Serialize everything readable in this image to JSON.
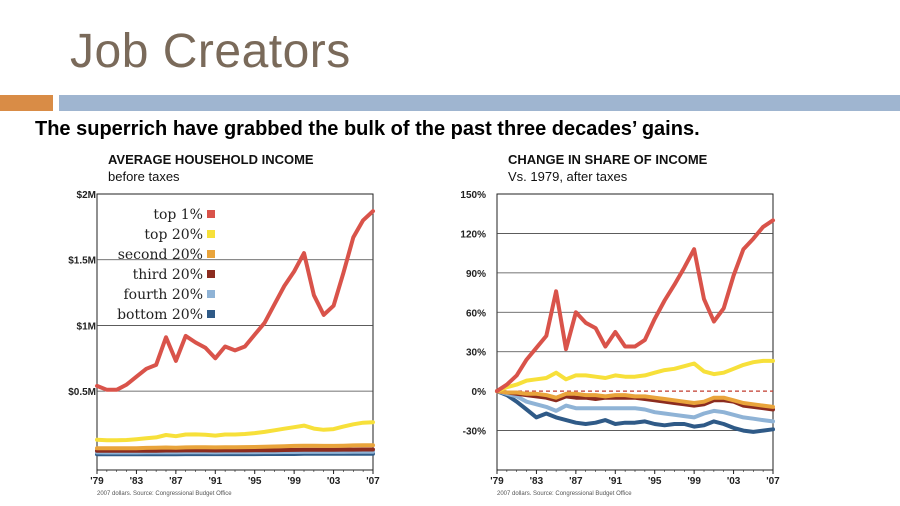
{
  "slide": {
    "title": "Job Creators",
    "subtitle": "The superrich have grabbed the bulk of the past three decades’ gains."
  },
  "colors": {
    "title": "#7a6a5a",
    "accent_orange": "#d98c46",
    "accent_blue": "#9fb5d0"
  },
  "chart_data": [
    {
      "type": "line",
      "title": "AVERAGE HOUSEHOLD INCOME",
      "subtitle": "before taxes",
      "source": "2007 dollars. Source: Congressional Budget Office",
      "x": [
        1979,
        1980,
        1981,
        1982,
        1983,
        1984,
        1985,
        1986,
        1987,
        1988,
        1989,
        1990,
        1991,
        1992,
        1993,
        1994,
        1995,
        1996,
        1997,
        1998,
        1999,
        2000,
        2001,
        2002,
        2003,
        2004,
        2005,
        2006,
        2007
      ],
      "x_tick_values": [
        1979,
        1983,
        1987,
        1991,
        1995,
        1999,
        2003,
        2007
      ],
      "x_tick_labels": [
        "'79",
        "'83",
        "'87",
        "'91",
        "'95",
        "'99",
        "'03",
        "'07"
      ],
      "y_tick_values": [
        0.5,
        1,
        1.5,
        2
      ],
      "y_tick_labels": [
        "$0.5M",
        "$1M",
        "$1.5M",
        "$2M"
      ],
      "ylim": [
        -0.1,
        2.0
      ],
      "legend_position": "top-left",
      "series": [
        {
          "name": "top 1%",
          "color": "#d9534a",
          "values": [
            0.54,
            0.51,
            0.51,
            0.55,
            0.61,
            0.67,
            0.7,
            0.91,
            0.73,
            0.92,
            0.87,
            0.83,
            0.75,
            0.84,
            0.81,
            0.84,
            0.93,
            1.02,
            1.16,
            1.3,
            1.41,
            1.55,
            1.23,
            1.08,
            1.15,
            1.4,
            1.67,
            1.8,
            1.87
          ]
        },
        {
          "name": "top 20%",
          "color": "#f7e03a",
          "values": [
            0.13,
            0.126,
            0.126,
            0.128,
            0.134,
            0.142,
            0.148,
            0.166,
            0.157,
            0.17,
            0.171,
            0.168,
            0.162,
            0.17,
            0.17,
            0.174,
            0.181,
            0.19,
            0.202,
            0.214,
            0.226,
            0.238,
            0.215,
            0.206,
            0.211,
            0.23,
            0.248,
            0.26,
            0.264
          ]
        },
        {
          "name": "second 20%",
          "color": "#e9a43b",
          "values": [
            0.066,
            0.065,
            0.065,
            0.065,
            0.066,
            0.068,
            0.069,
            0.071,
            0.07,
            0.072,
            0.073,
            0.073,
            0.072,
            0.073,
            0.073,
            0.074,
            0.075,
            0.077,
            0.079,
            0.081,
            0.083,
            0.085,
            0.084,
            0.083,
            0.083,
            0.085,
            0.087,
            0.088,
            0.089
          ]
        },
        {
          "name": "third 20%",
          "color": "#8c2c1f",
          "values": [
            0.047,
            0.046,
            0.046,
            0.046,
            0.046,
            0.047,
            0.047,
            0.048,
            0.048,
            0.049,
            0.049,
            0.049,
            0.048,
            0.049,
            0.049,
            0.049,
            0.05,
            0.05,
            0.051,
            0.052,
            0.053,
            0.054,
            0.054,
            0.054,
            0.054,
            0.055,
            0.055,
            0.056,
            0.056
          ]
        },
        {
          "name": "fourth 20%",
          "color": "#8fb3d6",
          "values": [
            0.034,
            0.033,
            0.033,
            0.033,
            0.033,
            0.034,
            0.034,
            0.034,
            0.034,
            0.035,
            0.035,
            0.035,
            0.034,
            0.035,
            0.035,
            0.035,
            0.035,
            0.036,
            0.036,
            0.037,
            0.037,
            0.038,
            0.038,
            0.038,
            0.038,
            0.038,
            0.039,
            0.039,
            0.039
          ]
        },
        {
          "name": "bottom 20%",
          "color": "#2f5a87",
          "values": [
            0.02,
            0.02,
            0.02,
            0.02,
            0.02,
            0.02,
            0.02,
            0.02,
            0.02,
            0.021,
            0.021,
            0.021,
            0.021,
            0.021,
            0.021,
            0.021,
            0.021,
            0.022,
            0.022,
            0.022,
            0.022,
            0.023,
            0.023,
            0.023,
            0.023,
            0.023,
            0.023,
            0.023,
            0.023
          ]
        }
      ]
    },
    {
      "type": "line",
      "title": "CHANGE IN SHARE OF INCOME",
      "subtitle": "Vs. 1979, after taxes",
      "source": "2007 dollars. Source: Congressional Budget Office",
      "x": [
        1979,
        1980,
        1981,
        1982,
        1983,
        1984,
        1985,
        1986,
        1987,
        1988,
        1989,
        1990,
        1991,
        1992,
        1993,
        1994,
        1995,
        1996,
        1997,
        1998,
        1999,
        2000,
        2001,
        2002,
        2003,
        2004,
        2005,
        2006,
        2007
      ],
      "x_tick_values": [
        1979,
        1983,
        1987,
        1991,
        1995,
        1999,
        2003,
        2007
      ],
      "x_tick_labels": [
        "'79",
        "'83",
        "'87",
        "'91",
        "'95",
        "'99",
        "'03",
        "'07"
      ],
      "y_tick_values": [
        -30,
        0,
        30,
        60,
        90,
        120,
        150
      ],
      "y_tick_labels": [
        "-30%",
        "0%",
        "30%",
        "60%",
        "90%",
        "120%",
        "150%"
      ],
      "ylim": [
        -60,
        150
      ],
      "baseline": 0,
      "series": [
        {
          "name": "top 1%",
          "color": "#d9534a",
          "values": [
            0,
            5,
            12,
            24,
            33,
            42,
            76,
            32,
            60,
            52,
            48,
            34,
            45,
            34,
            34,
            39,
            55,
            69,
            81,
            94,
            108,
            70,
            53,
            63,
            88,
            108,
            116,
            125,
            130
          ]
        },
        {
          "name": "top 20%",
          "color": "#f7e03a",
          "values": [
            0,
            3,
            5,
            8,
            9,
            10,
            14,
            9,
            12,
            12,
            11,
            10,
            12,
            11,
            11,
            12,
            14,
            16,
            17,
            19,
            21,
            15,
            13,
            14,
            17,
            20,
            22,
            23,
            23
          ]
        },
        {
          "name": "second 20%",
          "color": "#e9a43b",
          "values": [
            0,
            -1,
            -1,
            -2,
            -2,
            -3,
            -5,
            -2,
            -2,
            -3,
            -3,
            -4,
            -3,
            -3,
            -4,
            -4,
            -5,
            -6,
            -7,
            -8,
            -9,
            -8,
            -5,
            -5,
            -7,
            -9,
            -10,
            -11,
            -12
          ]
        },
        {
          "name": "third 20%",
          "color": "#8c2c1f",
          "values": [
            0,
            -1,
            -2,
            -3,
            -4,
            -5,
            -7,
            -4,
            -5,
            -5,
            -6,
            -5,
            -5,
            -5,
            -5,
            -6,
            -7,
            -8,
            -9,
            -10,
            -11,
            -10,
            -7,
            -7,
            -8,
            -11,
            -12,
            -13,
            -14
          ]
        },
        {
          "name": "fourth 20%",
          "color": "#8fb3d6",
          "values": [
            0,
            -2,
            -4,
            -8,
            -10,
            -12,
            -15,
            -11,
            -13,
            -13,
            -13,
            -13,
            -13,
            -13,
            -13,
            -14,
            -16,
            -17,
            -18,
            -19,
            -20,
            -17,
            -15,
            -16,
            -18,
            -20,
            -21,
            -22,
            -23
          ]
        },
        {
          "name": "bottom 20%",
          "color": "#2f5a87",
          "values": [
            0,
            -3,
            -8,
            -14,
            -20,
            -17,
            -20,
            -22,
            -24,
            -25,
            -24,
            -22,
            -25,
            -24,
            -24,
            -23,
            -25,
            -26,
            -25,
            -25,
            -27,
            -26,
            -23,
            -25,
            -28,
            -30,
            -31,
            -30,
            -29
          ]
        }
      ]
    }
  ]
}
